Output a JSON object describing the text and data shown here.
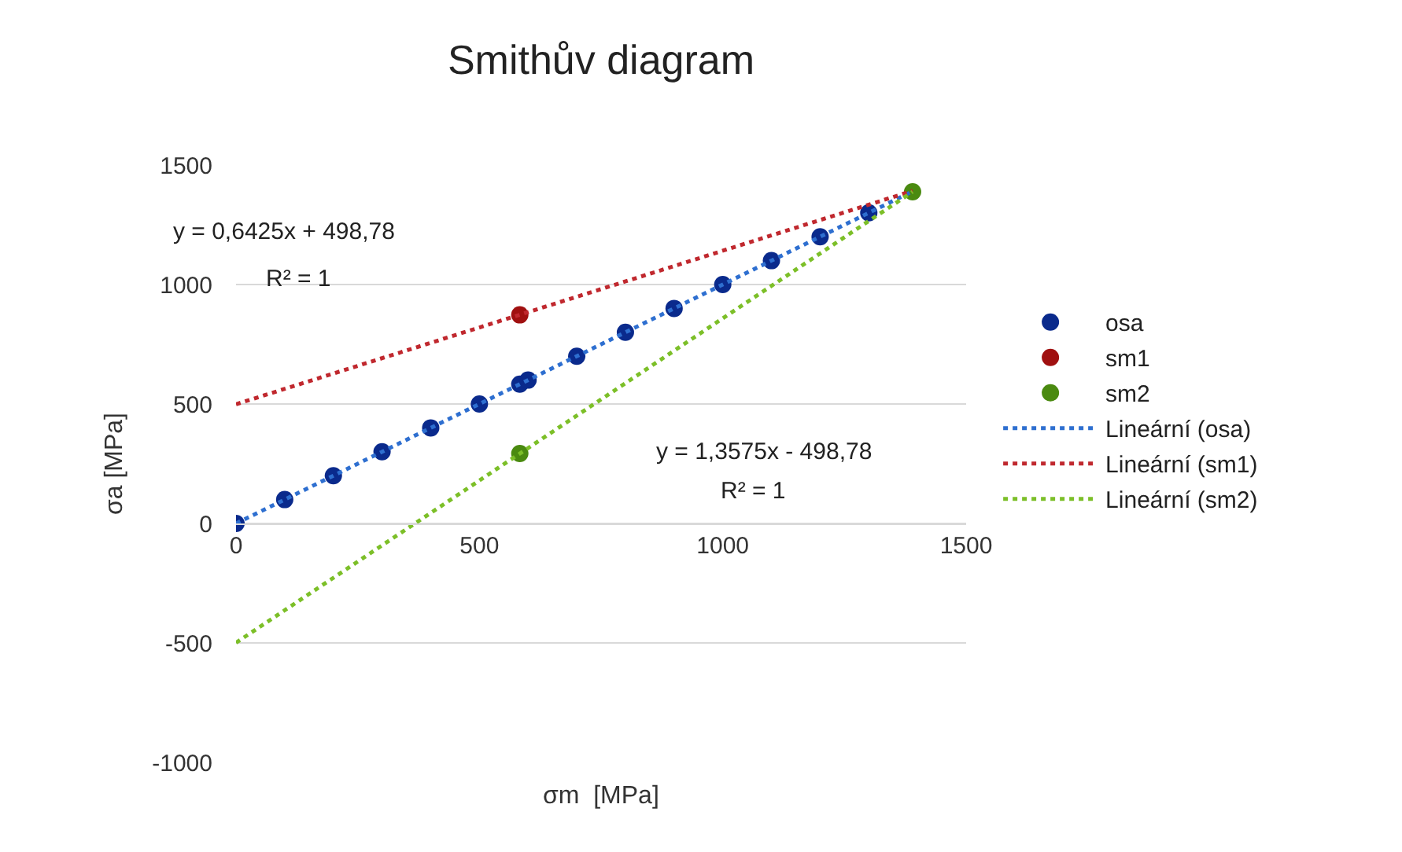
{
  "chart_data": {
    "type": "scatter",
    "title": "Smithův diagram",
    "xlabel": "σm  [MPa]",
    "ylabel": "σa [MPa]",
    "xlim": [
      0,
      1500
    ],
    "xticks": [
      0,
      500,
      1000,
      1500
    ],
    "ylim": [
      -1000,
      1500
    ],
    "yticks": [
      -1000,
      -500,
      0,
      500,
      1000,
      1500
    ],
    "grid": "y",
    "legend": "right",
    "marker": "circle",
    "series": [
      {
        "name": "osa",
        "color": "#0a2a8c",
        "x": [
          0,
          100,
          200,
          300,
          400,
          500,
          583,
          600,
          700,
          800,
          900,
          1000,
          1100,
          1200,
          1300
        ],
        "values": [
          0,
          100,
          200,
          300,
          400,
          500,
          583,
          600,
          700,
          800,
          900,
          1000,
          1100,
          1200,
          1300
        ]
      },
      {
        "name": "sm1",
        "color": "#a01010",
        "x": [
          583
        ],
        "values": [
          873
        ]
      },
      {
        "name": "sm2",
        "color": "#4a8a10",
        "x": [
          583,
          1390
        ],
        "values": [
          293,
          1388
        ]
      },
      {
        "name": "Lineární (osa)",
        "type": "line",
        "marker": "none",
        "line_style": "dotted",
        "color": "#2e6fd0",
        "x": [
          0,
          1390
        ],
        "values": [
          0,
          1390
        ]
      },
      {
        "name": "Lineární (sm1)",
        "type": "line",
        "marker": "none",
        "line_style": "dotted",
        "color": "#c0282e",
        "x": [
          0,
          1390
        ],
        "values": [
          499,
          1392
        ]
      },
      {
        "name": "Lineární (sm2)",
        "type": "line",
        "marker": "none",
        "line_style": "dotted",
        "color": "#7cbf28",
        "x": [
          0,
          1390
        ],
        "values": [
          -499,
          1388
        ]
      }
    ],
    "annotations": [
      "y = 0,6425x + 498,78",
      "R² = 1",
      "y = 1,3575x - 498,78",
      "R² = 1"
    ]
  }
}
